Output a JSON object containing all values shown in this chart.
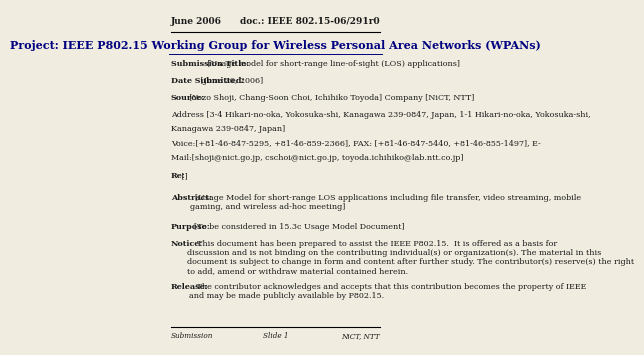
{
  "bg_color": "#f0ece0",
  "header_left": "June 2006",
  "header_right": "doc.: IEEE 802.15-06/291r0",
  "title": "Project: IEEE P802.15 Working Group for Wireless Personal Area Networks (WPANs)",
  "submission_title_bold": "Submission Title:",
  "submission_title_text": " [Usage model for short-range line-of-sight (LOS) applications]",
  "date_bold": "Date Submitted:",
  "date_text": " [June 26, 2006]",
  "source_bold": "Source:",
  "source_text": " [Yozo Shoji, Chang-Soon Choi, Ichihiko Toyoda] Company [NiCT, NTT]",
  "address_text": "Address [3-4 Hikari-no-oka, Yokosuka-shi, Kanagawa 239-0847, Japan, 1-1 Hikari-no-oka, Yokosuka-shi,",
  "address_text2": "Kanagawa 239-0847, Japan]",
  "voice_text": "Voice:[+81-46-847-5295, +81-46-859-2366], FAX: [+81-46-847-5440, +81-46-855-1497], E-",
  "email_text": "Mail:[shoji@nict.go.jp, cschoi@nict.go.jp, toyoda.ichihiko@lab.ntt.co.jp]",
  "re_bold": "Re:",
  "re_text": " []",
  "abstract_bold": "Abstract:",
  "abstract_text": "  [Usage Model for short-range LOS applications including file transfer, video streaming, mobile\ngaming, and wireless ad-hoc meeting]",
  "purpose_bold": "Purpose:",
  "purpose_text": "  [To be considered in 15.3c Usage Model Document]",
  "notice_bold": "Notice:",
  "notice_text": "    This document has been prepared to assist the IEEE P802.15.  It is offered as a basis for\ndiscussion and is not binding on the contributing individual(s) or organization(s). The material in this\ndocument is subject to change in form and content after further study. The contributor(s) reserve(s) the right\nto add, amend or withdraw material contained herein.",
  "release_bold": "Release:",
  "release_text": "   The contributor acknowledges and accepts that this contribution becomes the property of IEEE\nand may be made publicly available by P802.15.",
  "footer_left": "Submission",
  "footer_center": "Slide 1",
  "footer_right": "NiCT, NTT",
  "text_color": "#1a1a1a",
  "title_color": "#000080",
  "header_line_color": "#000000",
  "footer_line_color": "#000000"
}
